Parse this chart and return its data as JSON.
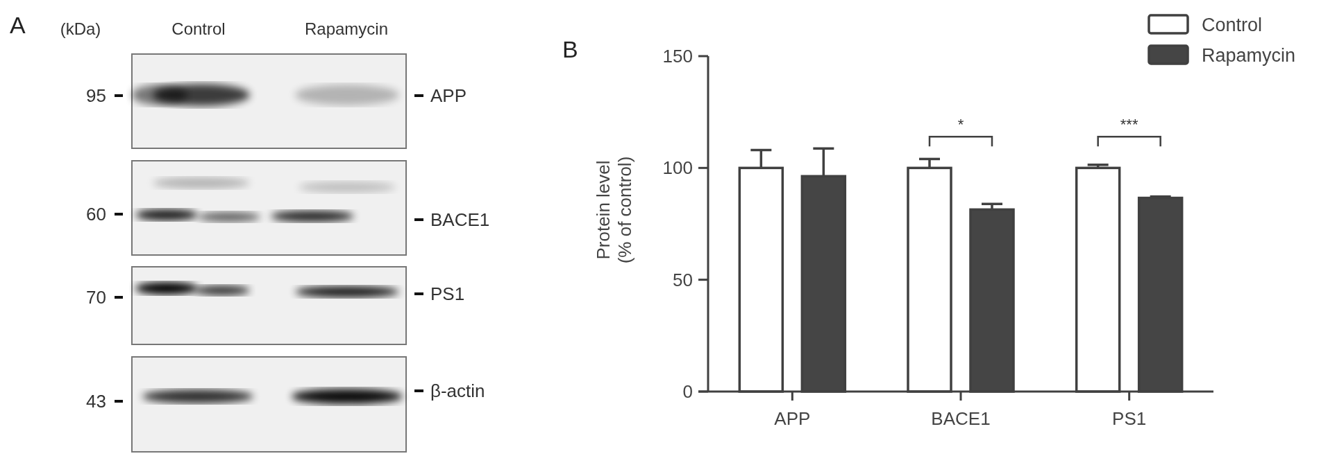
{
  "chart_data": [
    {
      "type": "other",
      "title": "A",
      "annotations": [
        "(kDa)",
        "Control",
        "Rapamycin",
        "95",
        "60",
        "70",
        "43",
        "APP",
        "BACE1",
        "PS1",
        "β-actin"
      ]
    },
    {
      "type": "bar",
      "title": "B",
      "categories": [
        "APP",
        "BACE1",
        "PS1"
      ],
      "ylabel": "Protein level\n(% of control)",
      "series": [
        {
          "name": "Control",
          "color": "#ffffff",
          "values": [
            100,
            100,
            100
          ],
          "errors": [
            [
              100,
              108
            ],
            [
              100,
              104
            ],
            [
              100,
              101.4
            ]
          ]
        },
        {
          "name": "Rapamycin",
          "color": "#454545",
          "values": [
            96.3,
            81.4,
            86.6
          ],
          "errors": [
            [
              96.3,
              108.7
            ],
            [
              81.4,
              83.9
            ],
            [
              86.6,
              87.2
            ]
          ]
        }
      ],
      "ylim": [
        0,
        150
      ],
      "yticks": [
        0,
        50,
        100,
        150
      ],
      "grid": false,
      "legend": "top right",
      "annotations": [
        "*",
        "***"
      ]
    }
  ]
}
